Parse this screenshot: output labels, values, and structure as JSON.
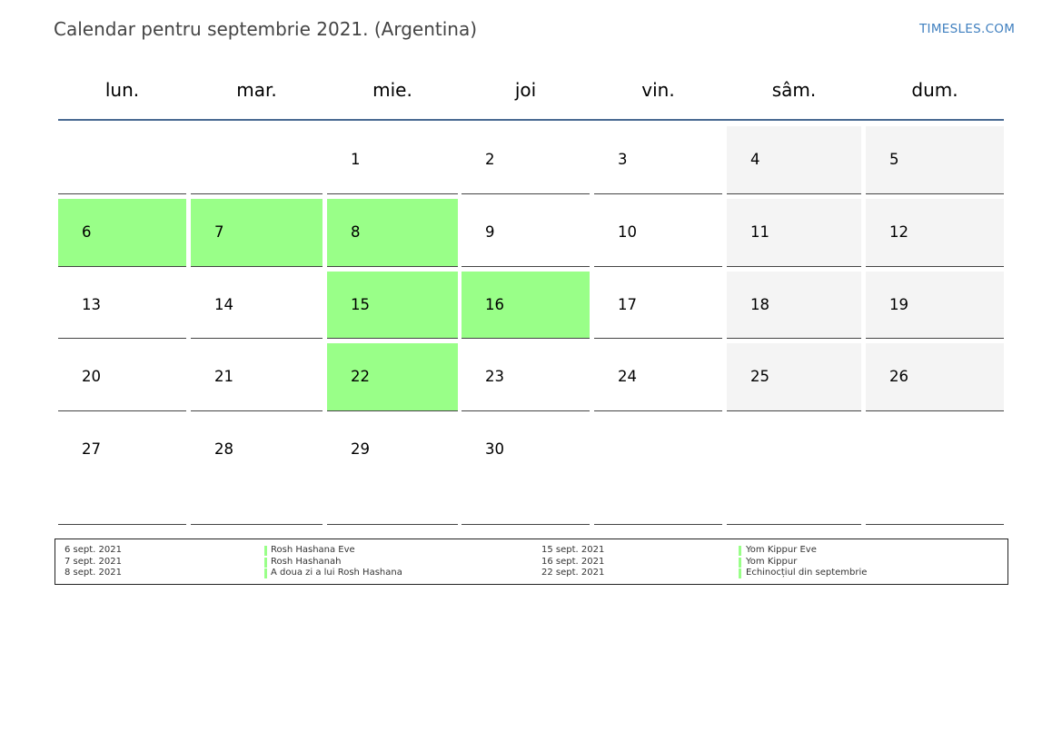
{
  "header": {
    "title": "Calendar pentru septembrie 2021. (Argentina)",
    "brand": "TIMESLES.COM"
  },
  "colors": {
    "holiday": "#99ff88",
    "weekend": "#f4f4f4",
    "header_line": "#4a6a92",
    "brand": "#3f7fbf"
  },
  "weekdays": [
    "lun.",
    "mar.",
    "mie.",
    "joi",
    "vin.",
    "sâm.",
    "dum."
  ],
  "weeks": [
    [
      "",
      "",
      "1",
      "2",
      "3",
      "4",
      "5"
    ],
    [
      "6",
      "7",
      "8",
      "9",
      "10",
      "11",
      "12"
    ],
    [
      "13",
      "14",
      "15",
      "16",
      "17",
      "18",
      "19"
    ],
    [
      "20",
      "21",
      "22",
      "23",
      "24",
      "25",
      "26"
    ],
    [
      "27",
      "28",
      "29",
      "30",
      "",
      "",
      ""
    ]
  ],
  "highlighted_days": [
    "6",
    "7",
    "8",
    "15",
    "16",
    "22"
  ],
  "legend": {
    "left": [
      {
        "date": "6 sept. 2021",
        "name": "Rosh Hashana Eve"
      },
      {
        "date": "7 sept. 2021",
        "name": "Rosh Hashanah"
      },
      {
        "date": "8 sept. 2021",
        "name": "A doua zi a lui Rosh Hashana"
      }
    ],
    "right": [
      {
        "date": "15 sept. 2021",
        "name": "Yom Kippur Eve"
      },
      {
        "date": "16 sept. 2021",
        "name": "Yom Kippur"
      },
      {
        "date": "22 sept. 2021",
        "name": "Echinocțiul din septembrie"
      }
    ]
  }
}
